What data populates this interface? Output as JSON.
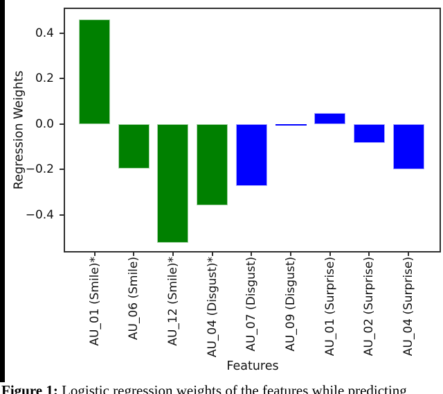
{
  "chart_data": {
    "type": "bar",
    "title": "",
    "xlabel": "Features",
    "ylabel": "Regression Weights",
    "categories": [
      "AU_01 (Smile)*",
      "AU_06 (Smile)",
      "AU_12 (Smile)*",
      "AU_04 (Disgust)*",
      "AU_07 (Disgust)",
      "AU_09 (Disgust)",
      "AU_01 (Surprise)",
      "AU_02 (Surprise)",
      "AU_04 (Surprise)"
    ],
    "values": [
      0.46,
      -0.197,
      -0.523,
      -0.358,
      -0.272,
      -0.006,
      0.047,
      -0.085,
      -0.201
    ],
    "bar_colors": [
      "#008000",
      "#008000",
      "#008000",
      "#008000",
      "#0000ff",
      "#0000ff",
      "#0000ff",
      "#0000ff",
      "#0000ff"
    ],
    "color_legend": {
      "green": "#008000",
      "blue": "#0000ff"
    },
    "ytick_values": [
      0.4,
      0.2,
      0.0,
      -0.2,
      -0.4
    ],
    "ytick_labels": [
      "0.4",
      "0.2",
      "0.0",
      "−0.2",
      "−0.4"
    ],
    "ylim": [
      -0.565,
      0.514
    ],
    "grid": false,
    "legend": null
  },
  "caption": {
    "label": "Figure 1:",
    "text": " Logistic regression weights of the features while predicting"
  }
}
